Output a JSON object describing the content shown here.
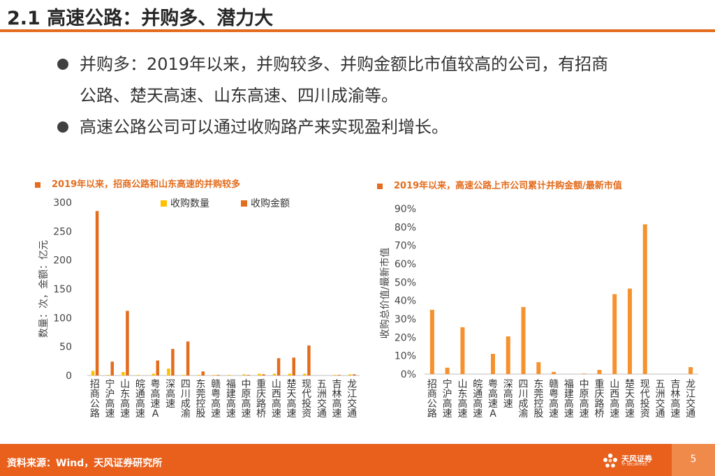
{
  "header": {
    "title": "2.1 高速公路：并购多、潜力大"
  },
  "bullets": [
    {
      "line1": "并购多：2019年以来，并购较多、并购金额比市值较高的公司，有招商",
      "line2": "公路、楚天高速、山东高速、四川成渝等。"
    },
    {
      "line1": "高速公路公司可以通过收购路产来实现盈利增长。"
    }
  ],
  "chart_data": [
    {
      "type": "bar",
      "title": "2019年以来，招商公路和山东高速的并购较多",
      "ylabel": "数量：次，金额：亿元",
      "ylim": [
        0,
        300
      ],
      "yticks": [
        "300",
        "250",
        "200",
        "150",
        "100",
        "50",
        "0"
      ],
      "categories": [
        "招商公路",
        "宁沪高速",
        "山东高速",
        "皖通高速",
        "粤高速A",
        "深高速",
        "四川成渝",
        "东莞控股",
        "赣粤高速",
        "福建高速",
        "中原高速",
        "重庆路桥",
        "山西高速",
        "楚天高速",
        "现代投资",
        "五洲交通",
        "吉林高速",
        "龙江交通"
      ],
      "series": [
        {
          "name": "收购数量",
          "color": "#ffc000",
          "values": [
            8,
            1,
            6,
            1,
            3,
            12,
            1,
            1,
            1,
            1,
            2,
            3,
            3,
            3,
            3,
            0,
            1,
            2
          ]
        },
        {
          "name": "收购金额",
          "color": "#e36c1d",
          "values": [
            285,
            24,
            112,
            0,
            26,
            46,
            59,
            7,
            1,
            0,
            1,
            2,
            30,
            31,
            52,
            0,
            1,
            2
          ]
        }
      ],
      "legend": "top"
    },
    {
      "type": "bar",
      "title": "2019年以来，高速公路上市公司累计并购金额/最新市值",
      "ylabel": "收购总价值/最新市值",
      "ylim": [
        0,
        0.9
      ],
      "yticks": [
        "90%",
        "80%",
        "70%",
        "60%",
        "50%",
        "40%",
        "30%",
        "20%",
        "10%",
        "0%"
      ],
      "categories": [
        "招商公路",
        "宁沪高速",
        "山东高速",
        "皖通高速",
        "粤高速A",
        "深高速",
        "四川成渝",
        "东莞控股",
        "赣粤高速",
        "福建高速",
        "中原高速",
        "重庆路桥",
        "山西高速",
        "楚天高速",
        "现代投资",
        "五洲交通",
        "吉林高速",
        "龙江交通"
      ],
      "series": [
        {
          "color": "#f5922e",
          "values": [
            0.35,
            0.035,
            0.255,
            0,
            0.11,
            0.205,
            0.365,
            0.065,
            0.012,
            0,
            0.003,
            0.023,
            0.435,
            0.465,
            0.815,
            0,
            0,
            0.038
          ]
        }
      ]
    }
  ],
  "footer": {
    "source": "资料来源：Wind，天风证券研究所",
    "brand": "天风证券",
    "brand_sub": "TF SECURITIES",
    "page": "5"
  }
}
